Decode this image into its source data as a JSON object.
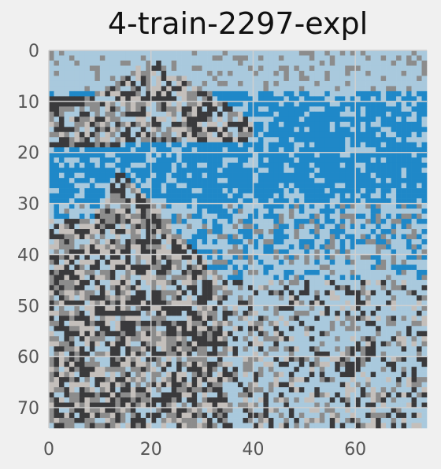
{
  "chart_data": {
    "type": "heatmap",
    "title": "4-train-2297-expl",
    "xlabel": "",
    "ylabel": "",
    "xlim": [
      0,
      74
    ],
    "ylim": [
      74,
      0
    ],
    "grid": true,
    "x_ticks": [
      0,
      20,
      40,
      60
    ],
    "y_ticks": [
      0,
      10,
      20,
      30,
      40,
      50,
      60,
      70
    ],
    "grid_size": [
      74,
      74
    ],
    "palette": {
      "blue": "#1f88c8",
      "pale_blue": "#a9c9dd",
      "gray": "#8c8c8c",
      "light_gray": "#c4bfbb",
      "dark": "#3a3a3c"
    }
  }
}
